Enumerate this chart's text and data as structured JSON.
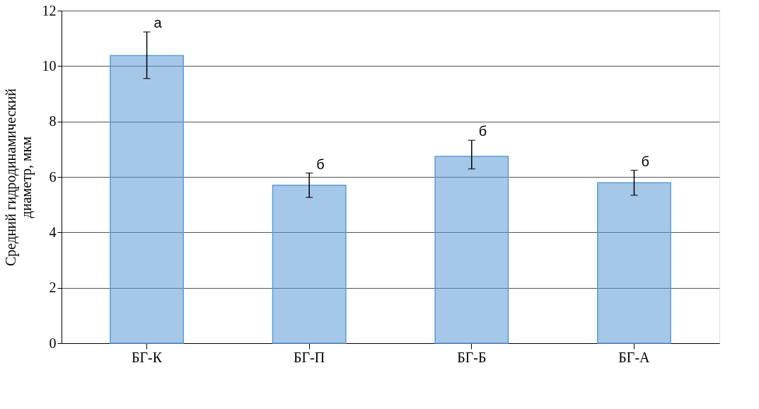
{
  "chart_data": {
    "type": "bar",
    "ylabel": "Средний гидродинамический диаметр, мкм",
    "categories": [
      "БГ-К",
      "БГ-П",
      "БГ-Б",
      "БГ-А"
    ],
    "values": [
      10.38,
      5.7,
      6.74,
      5.79
    ],
    "errors": [
      [
        9.55,
        11.23
      ],
      [
        5.26,
        6.14
      ],
      [
        6.29,
        7.32
      ],
      [
        5.34,
        6.24
      ]
    ],
    "color": "#5b9bd5",
    "ylim": [
      0,
      12
    ],
    "yticks": [
      0,
      2,
      4,
      6,
      8,
      10,
      12
    ],
    "grid": "y",
    "annotations": [
      {
        "text": "а",
        "x": "БГ-К",
        "y": 11.23
      },
      {
        "text": "б",
        "x": "БГ-П",
        "y": 6.14
      },
      {
        "text": "б",
        "x": "БГ-Б",
        "y": 7.32
      },
      {
        "text": "б",
        "x": "БГ-А",
        "y": 6.24
      }
    ]
  }
}
